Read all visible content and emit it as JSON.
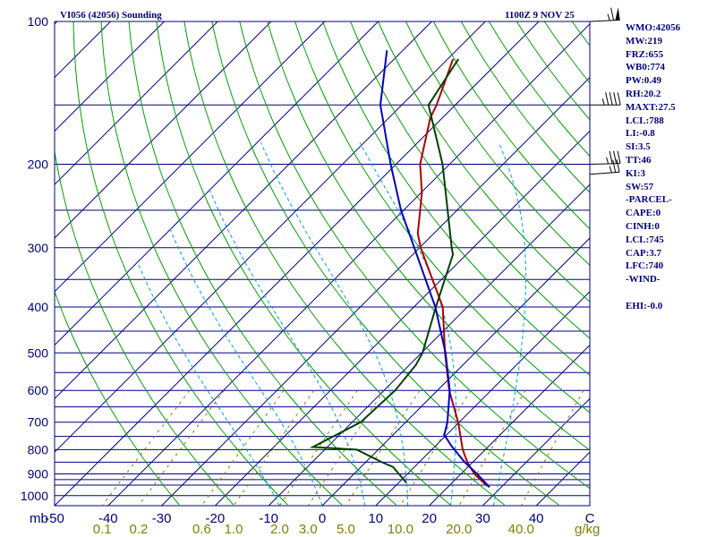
{
  "header": {
    "station": "VI056 (42056) Sounding",
    "datetime": "1100Z  9 NOV 25"
  },
  "indices": [
    "WMO:42056",
    "MW:219",
    "FRZ:655",
    "WB0:774",
    "PW:0.49",
    "RH:20.2",
    "MAXT:27.5",
    "LCL:788",
    "LI:-0.8",
    "SI:3.5",
    "TT:46",
    "KI:3",
    "SW:57",
    "-PARCEL-",
    "CAPE:0",
    "CINH:0",
    "LCL:745",
    "CAP:3.7",
    "LFC:740",
    "-WIND-",
    "",
    "EHI:-0.0"
  ],
  "colors": {
    "frame": "#000080",
    "isobar": "#000080",
    "isotherm": "#000080",
    "dry_adiabat": "#00a000",
    "moist_adiabat": "#00a0d0",
    "mixing_ratio": "#808000",
    "temperature": "#b00000",
    "dewpoint": "#004000",
    "parcel": "#0000c0",
    "background": "#ffffff"
  },
  "chart_data": {
    "type": "line",
    "title": "VI056 (42056) Sounding",
    "xlabel": "",
    "ylabel": "mb",
    "x_unit": "°C",
    "y_scale": "log",
    "grid": true,
    "xlim": [
      -50,
      50
    ],
    "ylim": [
      1050,
      100
    ],
    "pressure_ticks": [
      100,
      200,
      300,
      400,
      500,
      600,
      700,
      800,
      900,
      1000
    ],
    "pressure_tick_labels": [
      "100",
      "200",
      "300",
      "400",
      "500",
      "600",
      "700",
      "800",
      "900",
      "1000"
    ],
    "isobar_levels": [
      100,
      150,
      200,
      250,
      300,
      350,
      400,
      450,
      500,
      550,
      600,
      650,
      700,
      750,
      800,
      850,
      900,
      925,
      950,
      1000
    ],
    "temperature_ticks": [
      -50,
      -40,
      -30,
      -20,
      -10,
      0,
      10,
      20,
      30,
      40,
      50
    ],
    "temperature_tick_labels": [
      "-50",
      "-40",
      "-30",
      "-20",
      "-10",
      "0",
      "10",
      "20",
      "30",
      "40",
      "C"
    ],
    "mixing_ratio_ticks": [
      0.1,
      0.2,
      0.6,
      1.0,
      2.0,
      3.0,
      5.0,
      10.0,
      20.0,
      40.0
    ],
    "mixing_ratio_tick_labels": [
      "0.1",
      "0.2",
      "0.6",
      "1.0",
      "2.0",
      "3.0",
      "5.0",
      "10.0",
      "20.0",
      "40.0"
    ],
    "mixing_ratio_unit": "g/kg",
    "series": [
      {
        "key": "temperature",
        "points": [
          [
            955,
            27.2
          ],
          [
            900,
            22.5
          ],
          [
            850,
            19.0
          ],
          [
            800,
            15.8
          ],
          [
            700,
            9.8
          ],
          [
            600,
            2.2
          ],
          [
            500,
            -5.6
          ],
          [
            400,
            -14.6
          ],
          [
            300,
            -29.8
          ],
          [
            280,
            -33.0
          ],
          [
            230,
            -39.8
          ],
          [
            200,
            -45.5
          ],
          [
            160,
            -52.2
          ],
          [
            150,
            -53.5
          ],
          [
            120,
            -59.0
          ]
        ]
      },
      {
        "key": "dewpoint",
        "points": [
          [
            940,
            11.5
          ],
          [
            870,
            6.0
          ],
          [
            850,
            3.0
          ],
          [
            800,
            -4.0
          ],
          [
            790,
            -12.7
          ],
          [
            700,
            -8.4
          ],
          [
            600,
            -7.9
          ],
          [
            530,
            -8.8
          ],
          [
            500,
            -9.8
          ],
          [
            400,
            -15.9
          ],
          [
            310,
            -22.5
          ],
          [
            300,
            -24.0
          ],
          [
            200,
            -41.3
          ],
          [
            150,
            -55.0
          ],
          [
            120,
            -58.0
          ]
        ]
      },
      {
        "key": "parcel",
        "points": [
          [
            960,
            27.8
          ],
          [
            900,
            23.0
          ],
          [
            850,
            18.5
          ],
          [
            788,
            13.2
          ],
          [
            745,
            9.6
          ],
          [
            700,
            7.8
          ],
          [
            600,
            2.3
          ],
          [
            500,
            -5.5
          ],
          [
            400,
            -16.0
          ],
          [
            300,
            -31.0
          ],
          [
            250,
            -40.5
          ],
          [
            200,
            -51.0
          ],
          [
            150,
            -64.0
          ],
          [
            115,
            -73.0
          ]
        ]
      }
    ],
    "wind_barbs": [
      {
        "pressure": 100,
        "direction": 260,
        "speed": 65
      },
      {
        "pressure": 150,
        "direction": 270,
        "speed": 45
      },
      {
        "pressure": 200,
        "direction": 265,
        "speed": 35
      },
      {
        "pressure": 210,
        "direction": 255,
        "speed": 25
      }
    ]
  }
}
